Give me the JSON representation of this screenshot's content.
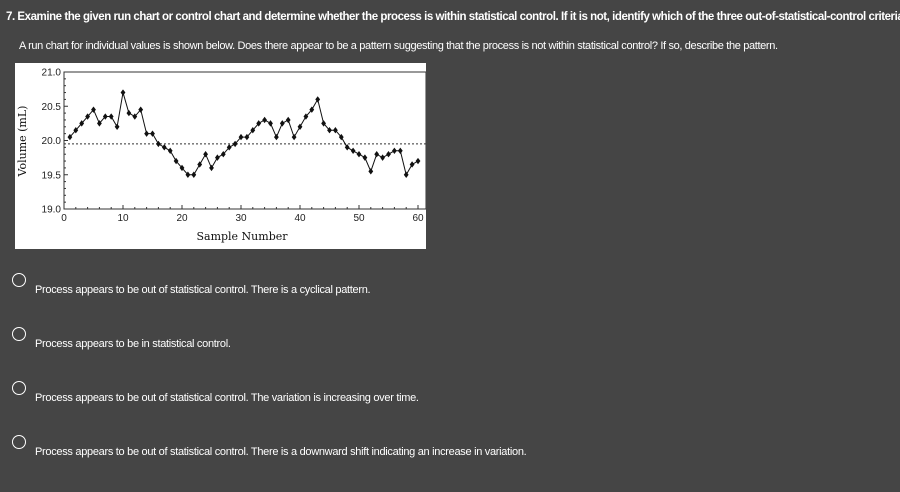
{
  "question": {
    "title": "7. Examine the given run chart or control chart and determine whether the process is within statistical control. If it is not, identify which of the three out-of-statistical-control criteria apply.",
    "prompt": "A run chart for individual values is shown below. Does there appear to be a pattern suggesting that the process is not within statistical control? If so, describe the pattern."
  },
  "chart_data": {
    "type": "line",
    "xlabel": "Sample Number",
    "ylabel": "Volume (mL)",
    "xlim": [
      0,
      60
    ],
    "ylim": [
      19.0,
      21.0
    ],
    "xticks": [
      "0",
      "10",
      "20",
      "30",
      "40",
      "50",
      "60"
    ],
    "yticks": [
      "19.0",
      "19.5",
      "20.0",
      "20.5",
      "21.0"
    ],
    "centerline": 19.95,
    "x": [
      1,
      2,
      3,
      4,
      5,
      6,
      7,
      8,
      9,
      10,
      11,
      12,
      13,
      14,
      15,
      16,
      17,
      18,
      19,
      20,
      21,
      22,
      23,
      24,
      25,
      26,
      27,
      28,
      29,
      30,
      31,
      32,
      33,
      34,
      35,
      36,
      37,
      38,
      39,
      40,
      41,
      42,
      43,
      44,
      45,
      46,
      47,
      48,
      49,
      50,
      51,
      52,
      53,
      54,
      55,
      56,
      57,
      58,
      59,
      60
    ],
    "values": [
      20.05,
      20.15,
      20.25,
      20.35,
      20.45,
      20.25,
      20.35,
      20.35,
      20.2,
      20.7,
      20.4,
      20.35,
      20.45,
      20.1,
      20.1,
      19.95,
      19.9,
      19.85,
      19.7,
      19.6,
      19.5,
      19.5,
      19.65,
      19.8,
      19.6,
      19.75,
      19.8,
      19.9,
      19.95,
      20.05,
      20.05,
      20.15,
      20.25,
      20.3,
      20.25,
      20.05,
      20.25,
      20.3,
      20.05,
      20.2,
      20.35,
      20.45,
      20.6,
      20.25,
      20.15,
      20.15,
      20.05,
      19.9,
      19.85,
      19.8,
      19.75,
      19.55,
      19.8,
      19.75,
      19.8,
      19.85,
      19.85,
      19.5,
      19.65,
      19.7
    ]
  },
  "options": [
    {
      "label": "Process appears to be out of statistical control. There is a cyclical pattern."
    },
    {
      "label": "Process appears to be in statistical control."
    },
    {
      "label": "Process appears to be out of statistical control. The variation is increasing over time."
    },
    {
      "label": "Process appears to be out of statistical control. There is a downward shift indicating an increase in variation."
    }
  ]
}
